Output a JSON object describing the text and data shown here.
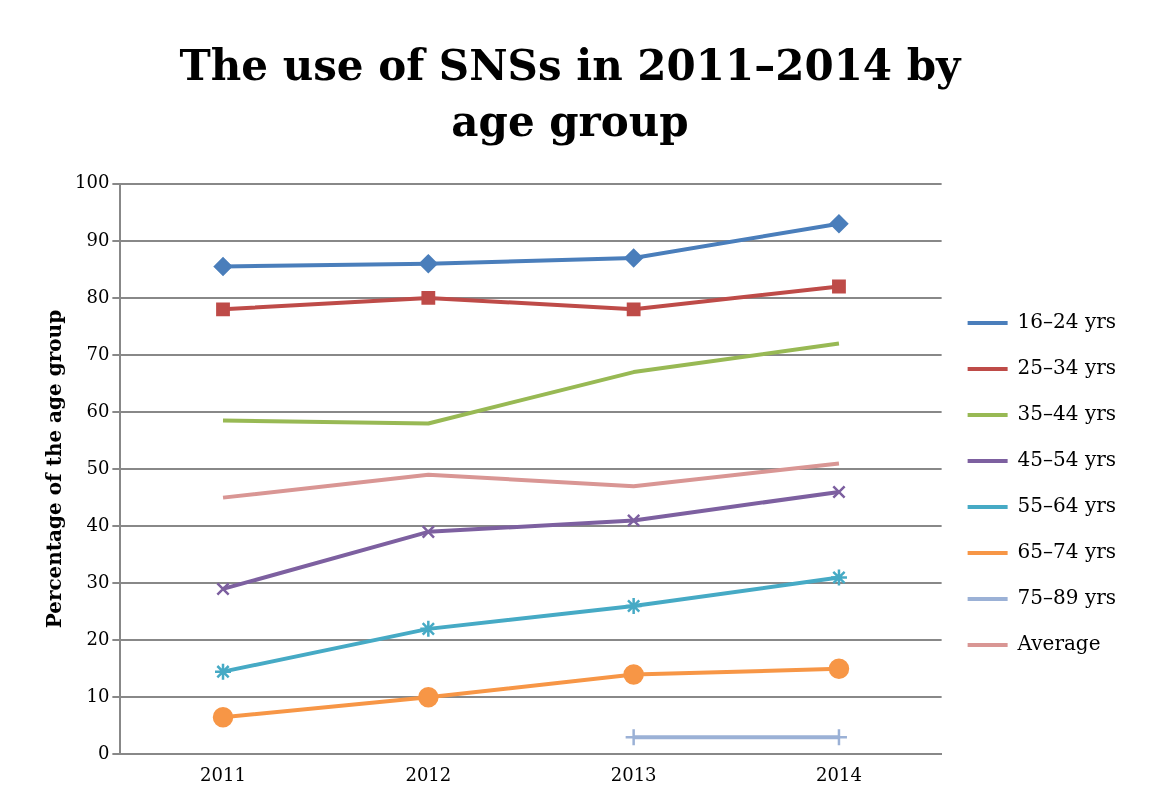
{
  "chart_data": {
    "type": "line",
    "title": "The use of SNSs in 2011–2014 by age group",
    "ylabel": "Percentage of the age group",
    "categories": [
      "2011",
      "2012",
      "2013",
      "2014"
    ],
    "ylim": [
      0,
      100
    ],
    "yticks": [
      0,
      10,
      20,
      30,
      40,
      50,
      60,
      70,
      80,
      90,
      100
    ],
    "grid": "y",
    "legend": "right",
    "series": [
      {
        "name": "16–24 yrs",
        "color": "#4a7ebb",
        "marker": "diamond",
        "values": [
          85.5,
          86,
          87,
          93
        ]
      },
      {
        "name": "25–34 yrs",
        "color": "#be4b48",
        "marker": "square",
        "values": [
          78,
          80,
          78,
          82
        ]
      },
      {
        "name": "35–44 yrs",
        "color": "#98b954",
        "marker": "none",
        "values": [
          58.5,
          58,
          67,
          72
        ]
      },
      {
        "name": "45–54 yrs",
        "color": "#7d60a0",
        "marker": "cross",
        "values": [
          29,
          39,
          41,
          46
        ]
      },
      {
        "name": "55–64 yrs",
        "color": "#46aac5",
        "marker": "cross",
        "values": [
          14.5,
          22,
          26,
          31
        ]
      },
      {
        "name": "65–74 yrs",
        "color": "#f79646",
        "marker": "circle",
        "values": [
          6.5,
          10,
          14,
          15
        ]
      },
      {
        "name": "75–89 yrs",
        "color": "#9bb1d6",
        "marker": "cross",
        "values": [
          null,
          null,
          3,
          3
        ]
      },
      {
        "name": "Average",
        "color": "#d99694",
        "marker": "none",
        "values": [
          45,
          49,
          47,
          51
        ]
      }
    ]
  }
}
